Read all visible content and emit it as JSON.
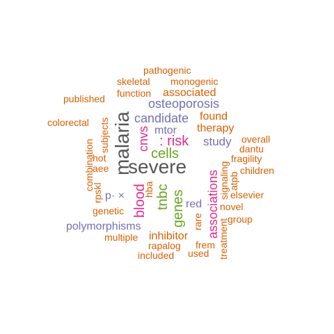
{
  "palette": {
    "orange": "#d95f02",
    "purple": "#7570b3",
    "magenta": "#e7298a",
    "green": "#66a61e",
    "gray": "#555555"
  },
  "words": [
    {
      "text": "pathogenic",
      "color": "orange"
    },
    {
      "text": "skeletal",
      "color": "orange"
    },
    {
      "text": "monogenic",
      "color": "orange"
    },
    {
      "text": "published",
      "color": "orange"
    },
    {
      "text": "function",
      "color": "orange"
    },
    {
      "text": "associated",
      "color": "orange"
    },
    {
      "text": "osteoporosis",
      "color": "purple"
    },
    {
      "text": "candidate",
      "color": "purple"
    },
    {
      "text": "found",
      "color": "orange"
    },
    {
      "text": "colorectal",
      "color": "orange"
    },
    {
      "text": "mtor",
      "color": "purple"
    },
    {
      "text": "therapy",
      "color": "orange"
    },
    {
      "text": ": risk",
      "color": "magenta"
    },
    {
      "text": "overall",
      "color": "orange"
    },
    {
      "text": "study",
      "color": "purple"
    },
    {
      "text": "dantu",
      "color": "orange"
    },
    {
      "text": "cells",
      "color": "green"
    },
    {
      "text": "fragility",
      "color": "orange"
    },
    {
      "text": "severe",
      "color": "gray"
    },
    {
      "text": "children",
      "color": "orange"
    },
    {
      "text": "elsevier",
      "color": "orange"
    },
    {
      "text": "red",
      "color": "purple"
    },
    {
      "text": "novel",
      "color": "orange"
    },
    {
      "text": "genetic",
      "color": "orange"
    },
    {
      "text": "group",
      "color": "orange"
    },
    {
      "text": "polymorphisms",
      "color": "purple"
    },
    {
      "text": "multiple",
      "color": "orange"
    },
    {
      "text": "inhibitor",
      "color": "orange"
    },
    {
      "text": "rapalog",
      "color": "orange"
    },
    {
      "text": "frem",
      "color": "orange"
    },
    {
      "text": "included",
      "color": "orange"
    },
    {
      "text": "used",
      "color": "orange"
    },
    {
      "text": "hot",
      "color": "orange"
    },
    {
      "text": "aee",
      "color": "orange"
    },
    {
      "text": "p· ×",
      "color": "purple"
    },
    {
      "text": "malaria",
      "color": "gray"
    },
    {
      "text": "subjects",
      "color": "orange"
    },
    {
      "text": "combination",
      "color": "orange"
    },
    {
      "text": "rpskl",
      "color": "orange"
    },
    {
      "text": "cnvs",
      "color": "magenta"
    },
    {
      "text": "blood",
      "color": "magenta"
    },
    {
      "text": "hba",
      "color": "orange"
    },
    {
      "text": "tnbc",
      "color": "green"
    },
    {
      "text": "genes",
      "color": "green"
    },
    {
      "text": "rare",
      "color": "orange"
    },
    {
      "text": "associations",
      "color": "magenta"
    },
    {
      "text": "treatment",
      "color": "orange"
    },
    {
      "text": "signaling",
      "color": "orange"
    },
    {
      "text": "atpb",
      "color": "orange"
    }
  ]
}
